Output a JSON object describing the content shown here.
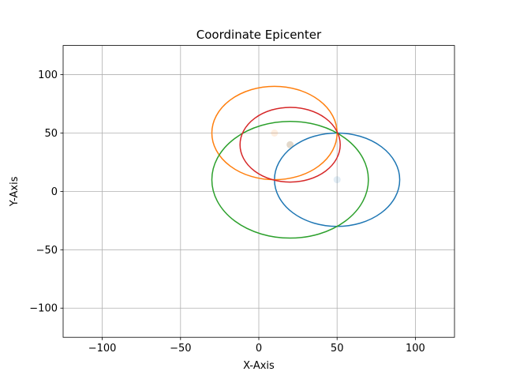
{
  "chart_data": {
    "type": "scatter",
    "title": "Coordinate Epicenter",
    "xlabel": "X-Axis",
    "ylabel": "Y-Axis",
    "xlim": [
      -125,
      125
    ],
    "ylim": [
      -125,
      125
    ],
    "xticks": [
      -100,
      -50,
      0,
      50,
      100
    ],
    "yticks": [
      -100,
      -50,
      0,
      50,
      100
    ],
    "xtick_labels": [
      "−100",
      "−50",
      "0",
      "50",
      "100"
    ],
    "ytick_labels": [
      "−100",
      "−50",
      "0",
      "50",
      "100"
    ],
    "grid": true,
    "legend": "none",
    "series": [
      {
        "color": "#1f77b4",
        "point": {
          "x": 50,
          "y": 10
        },
        "circle": {
          "cx": 50,
          "cy": 10,
          "r": 40
        }
      },
      {
        "color": "#ff7f0e",
        "point": {
          "x": 10,
          "y": 50
        },
        "circle": {
          "cx": 10,
          "cy": 50,
          "r": 40
        }
      },
      {
        "color": "#2ca02c",
        "point": {
          "x": 20,
          "y": 40
        },
        "circle": {
          "cx": 20,
          "cy": 10,
          "r": 50
        }
      },
      {
        "color": "#d62728",
        "point": {
          "x": 20,
          "y": 40
        },
        "circle": {
          "cx": 20,
          "cy": 40,
          "r": 32
        }
      }
    ]
  }
}
